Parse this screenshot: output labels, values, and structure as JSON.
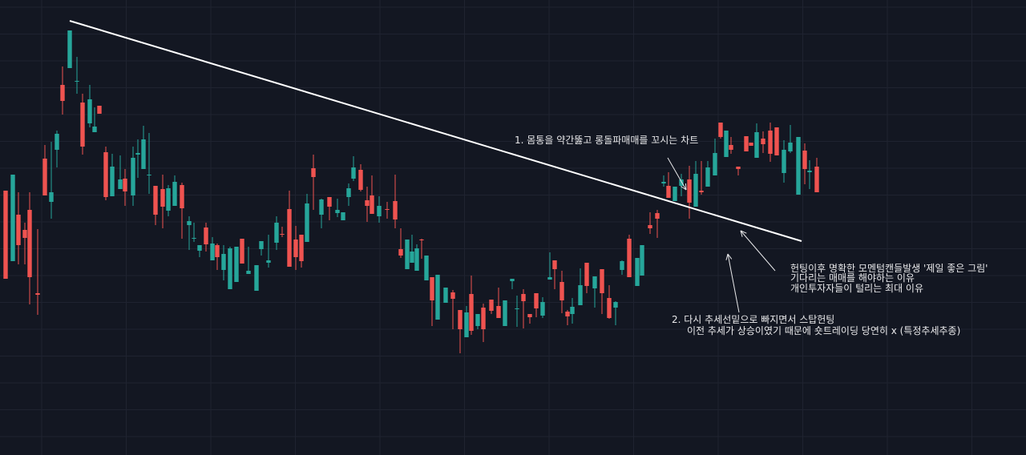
{
  "colors": {
    "background": "#131722",
    "grid": "#1f2330",
    "up": "#26a69a",
    "down": "#ef5350",
    "trendline": "#ffffff",
    "text": "#e8e8ea",
    "arrow": "#e8e8ea"
  },
  "annotations": {
    "note1": "1. 몸통을 약간뚫고 롱돌파매매를 꼬시는 차트",
    "note2_line1": "2. 다시 추세선밑으로 빠지면서 스탑헌팅",
    "note2_line2": "이전 추세가 상승이였기 때문에 숏트레이딩 당연히 x (특정추세추종)",
    "note3_line1": "헌팅이후 명확한 모멘텀캔들발생 '제일 좋은 그림'",
    "note3_line2": "기다리는 매매를 해야하는 이유",
    "note3_line3": "개인투자자들이 털리는 최대 이유"
  },
  "chart_data": {
    "type": "candlestick",
    "title": "",
    "xlabel": "",
    "ylabel": "",
    "grid": true,
    "ylim": [
      0,
      568
    ],
    "trendline": {
      "from": [
        1,
        542
      ],
      "to": [
        124,
        267
      ]
    },
    "candles": [
      [
        7,
        330,
        220,
        330,
        225
      ],
      [
        9,
        242,
        350,
        222,
        362
      ],
      [
        7,
        300,
        262,
        328,
        238
      ],
      [
        8,
        281,
        271,
        290,
        238
      ],
      [
        6,
        306,
        222,
        328,
        188
      ],
      [
        10,
        202,
        200,
        282,
        175
      ],
      [
        9,
        370,
        324,
        387,
        342
      ],
      [
        8,
        316,
        328,
        391,
        295
      ],
      [
        7,
        381,
        401,
        405,
        359
      ],
      [
        7,
        462,
        442,
        485,
        425
      ],
      [
        9,
        483,
        530,
        511,
        546
      ],
      [
        9,
        466,
        467,
        497,
        451
      ],
      [
        7,
        440,
        385,
        451,
        375
      ],
      [
        9,
        414,
        444,
        462,
        409
      ],
      [
        6,
        403,
        410,
        434,
        413
      ],
      [
        6,
        436,
        426,
        430,
        435
      ],
      [
        8,
        378,
        322,
        385,
        318
      ],
      [
        8,
        323,
        360,
        376,
        346
      ],
      [
        10,
        332,
        344,
        374,
        343
      ],
      [
        6,
        345,
        329,
        357,
        311
      ],
      [
        10,
        324,
        371,
        385,
        311
      ],
      [
        6,
        375,
        377,
        394,
        346
      ],
      [
        7,
        357,
        394,
        411,
        359
      ],
      [
        7,
        349,
        350,
        402,
        326
      ],
      [
        8,
        336,
        300,
        336,
        287
      ],
      [
        9,
        332,
        310,
        350,
        283
      ],
      [
        7,
        305,
        333,
        337,
        298
      ],
      [
        8,
        311,
        341,
        349,
        321
      ],
      [
        9,
        337,
        308,
        340,
        270
      ],
      [
        9,
        287,
        292,
        298,
        256
      ],
      [
        6,
        271,
        271,
        290,
        266
      ],
      [
        7,
        255,
        262,
        257,
        247
      ],
      [
        8,
        284,
        263,
        290,
        254
      ],
      [
        8,
        243,
        264,
        272,
        260
      ],
      [
        6,
        262,
        247,
        264,
        231
      ],
      [
        8,
        231,
        251,
        262,
        218
      ],
      [
        8,
        207,
        258,
        260,
        272
      ],
      [
        8,
        216,
        260,
        248,
        250
      ],
      [
        7,
        270,
        239,
        239,
        254
      ],
      [
        8,
        226,
        230,
        260,
        229
      ],
      [
        10,
        205,
        237,
        232,
        212
      ],
      [
        6,
        257,
        267,
        267,
        249
      ],
      [
        9,
        240,
        243,
        275,
        234
      ],
      [
        10,
        265,
        290,
        298,
        256
      ],
      [
        7,
        276,
        275,
        285,
        272
      ],
      [
        9,
        307,
        235,
        330,
        236
      ],
      [
        8,
        269,
        247,
        286,
        231
      ],
      [
        7,
        275,
        242,
        271,
        234
      ],
      [
        7,
        266,
        314,
        326,
        308
      ],
      [
        8,
        358,
        347,
        375,
        306
      ],
      [
        10,
        300,
        319,
        320,
        283
      ],
      [
        10,
        322,
        310,
        321,
        293
      ],
      [
        10,
        302,
        306,
        320,
        297
      ],
      [
        7,
        293,
        303,
        300,
        300
      ],
      [
        7,
        322,
        333,
        339,
        311
      ],
      [
        6,
        345,
        359,
        373,
        342
      ],
      [
        9,
        356,
        331,
        363,
        329
      ],
      [
        8,
        318,
        311,
        335,
        291
      ],
      [
        6,
        324,
        301,
        349,
        301
      ],
      [
        9,
        298,
        311,
        323,
        290
      ],
      [
        10,
        307,
        306,
        316,
        295
      ],
      [
        10,
        317,
        294,
        350,
        283
      ],
      [
        7,
        257,
        249,
        283,
        246
      ],
      [
        8,
        232,
        269,
        269,
        258
      ],
      [
        6,
        240,
        254,
        275,
        240
      ],
      [
        6,
        230,
        258,
        263,
        258
      ],
      [
        6,
        269,
        268,
        270,
        245
      ],
      [
        6,
        218,
        249,
        238,
        222
      ],
      [
        7,
        222,
        193,
        222,
        161
      ],
      [
        7,
        169,
        225,
        219,
        183
      ],
      [
        10,
        190,
        209,
        184,
        195
      ],
      [
        9,
        203,
        195,
        206,
        157
      ],
      [
        9,
        181,
        157,
        160,
        127
      ],
      [
        8,
        147,
        178,
        186,
        158
      ],
      [
        6,
        201,
        155,
        224,
        150
      ],
      [
        8,
        161,
        176,
        165,
        157
      ],
      [
        7,
        184,
        157,
        189,
        141
      ],
      [
        10,
        194,
        180,
        189,
        176
      ],
      [
        9,
        186,
        171,
        209,
        173
      ],
      [
        8,
        161,
        193,
        186,
        200
      ],
      [
        9,
        217,
        220,
        220,
        207
      ],
      [
        6,
        183,
        183,
        199,
        160
      ],
      [
        8,
        201,
        192,
        207,
        158
      ],
      [
        8,
        176,
        172,
        176,
        164
      ],
      [
        8,
        202,
        183,
        194,
        172
      ],
      [
        8,
        174,
        191,
        197,
        171
      ],
      [
        9,
        219,
        222,
        253,
        219
      ],
      [
        6,
        243,
        232,
        235,
        207
      ],
      [
        9,
        216,
        193,
        230,
        177
      ],
      [
        7,
        179,
        173,
        181,
        162
      ],
      [
        6,
        176,
        185,
        196,
        164
      ],
      [
        10,
        187,
        212,
        233,
        196
      ],
      [
        8,
        240,
        211,
        224,
        202
      ],
      [
        10,
        208,
        223,
        218,
        184
      ],
      [
        9,
        232,
        202,
        232,
        176
      ],
      [
        9,
        196,
        171,
        212,
        170
      ],
      [
        8,
        184,
        191,
        192,
        162
      ],
      [
        8,
        231,
        242,
        243,
        225
      ],
      [
        9,
        270,
        222,
        275,
        231
      ],
      [
        10,
        211,
        246,
        245,
        224
      ],
      [
        6,
        224,
        262,
        235,
        258
      ],
      [
        10,
        287,
        283,
        303,
        276
      ],
      [
        9,
        302,
        295,
        306,
        271
      ],
      [
        8,
        339,
        341,
        349,
        335
      ],
      [
        6,
        336,
        321,
        353,
        321
      ],
      [
        8,
        317,
        335,
        325,
        327
      ],
      [
        8,
        336,
        344,
        351,
        323
      ],
      [
        10,
        344,
        315,
        361,
        295
      ],
      [
        8,
        310,
        351,
        367,
        329
      ],
      [
        7,
        330,
        328,
        367,
        325
      ],
      [
        8,
        335,
        359,
        367,
        344
      ],
      [
        9,
        349,
        377,
        395,
        355
      ],
      [
        7,
        415,
        397,
        409,
        395
      ],
      [
        7,
        372,
        405,
        384,
        405
      ],
      [
        6,
        387,
        381,
        397,
        376
      ],
      [
        9,
        360,
        357,
        352,
        349
      ],
      [
        10,
        398,
        379,
        372,
        398
      ],
      [
        6,
        390,
        386,
        379,
        393
      ],
      [
        7,
        371,
        403,
        414,
        390
      ],
      [
        8,
        395,
        388,
        404,
        377
      ],
      [
        9,
        405,
        376,
        415,
        366
      ],
      [
        8,
        409,
        374,
        389,
        383
      ],
      [
        9,
        352,
        381,
        393,
        340
      ],
      [
        8,
        379,
        390,
        412,
        377
      ],
      [
        10,
        325,
        397,
        378,
        349
      ],
      [
        8,
        380,
        357,
        389,
        338
      ],
      [
        6,
        353,
        355,
        368,
        332
      ],
      [
        9,
        360,
        328,
        371,
        334
      ]
    ]
  }
}
